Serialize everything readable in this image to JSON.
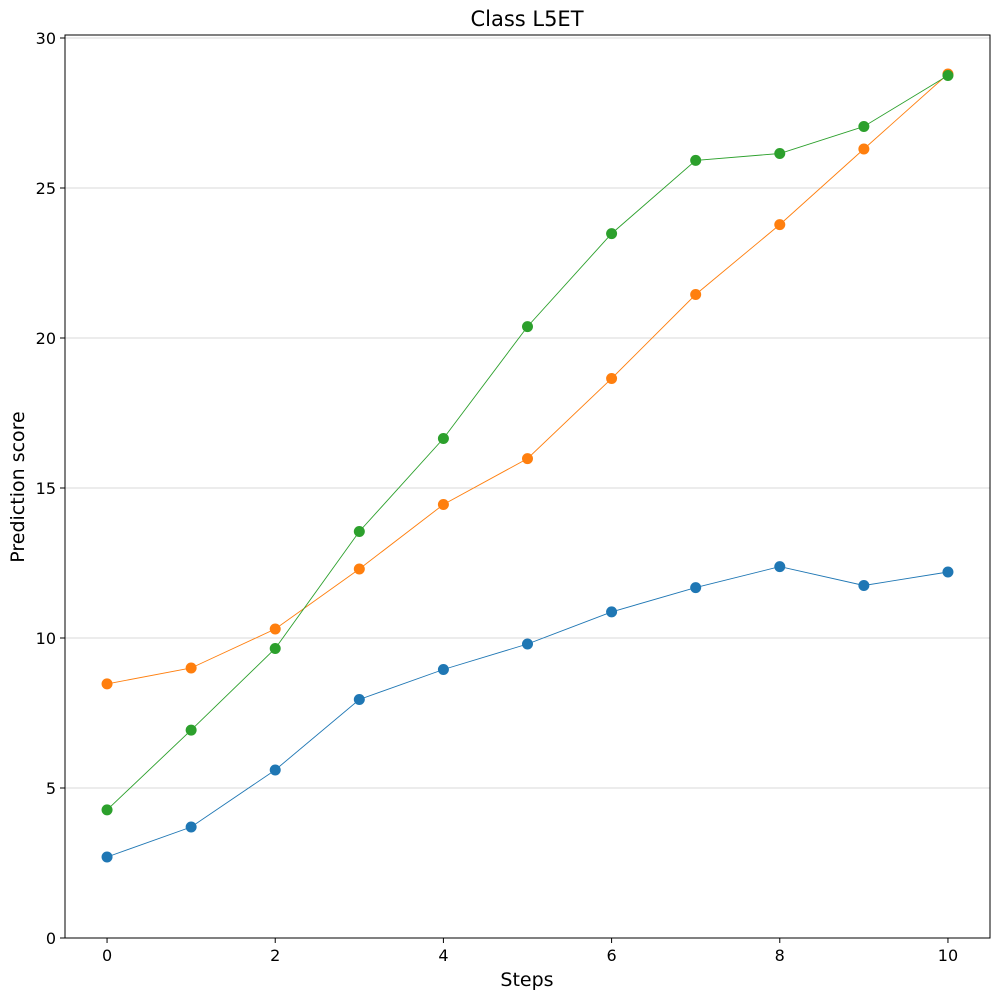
{
  "chart_data": {
    "type": "line",
    "title": "Class L5ET",
    "xlabel": "Steps",
    "ylabel": "Prediction score",
    "xlim": [
      -0.5,
      10.5
    ],
    "ylim": [
      0,
      30.1
    ],
    "xticks": [
      0,
      2,
      4,
      6,
      8,
      10
    ],
    "yticks": [
      0,
      5,
      10,
      15,
      20,
      25,
      30
    ],
    "grid": "horizontal",
    "legend": "none",
    "x": [
      0,
      1,
      2,
      3,
      4,
      5,
      6,
      7,
      8,
      9,
      10
    ],
    "series": [
      {
        "color": "#1f77b4",
        "values": [
          2.7,
          3.7,
          5.6,
          7.95,
          8.95,
          9.8,
          10.87,
          11.68,
          12.38,
          11.75,
          12.2
        ]
      },
      {
        "color": "#ff7f0e",
        "values": [
          8.47,
          9.0,
          10.3,
          12.3,
          14.45,
          15.98,
          18.65,
          21.45,
          23.78,
          26.3,
          28.8
        ]
      },
      {
        "color": "#2ca02c",
        "values": [
          4.27,
          6.93,
          9.65,
          13.55,
          16.65,
          20.38,
          23.48,
          25.92,
          26.15,
          27.05,
          28.75
        ]
      }
    ]
  }
}
